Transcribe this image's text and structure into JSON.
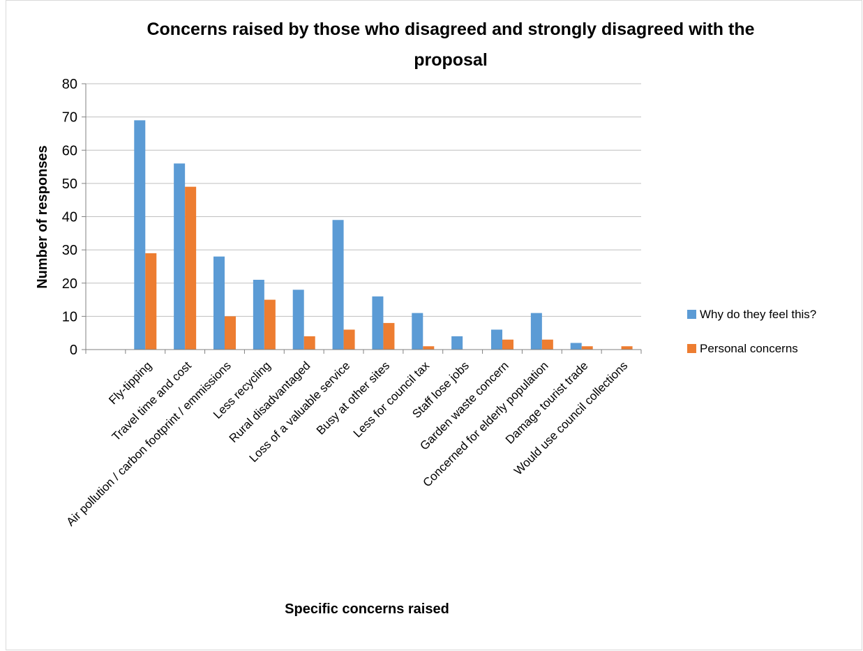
{
  "chart_data": {
    "type": "bar",
    "title_line1": "Concerns raised by those who disagreed and strongly disagreed with the",
    "title_line2": "proposal",
    "xlabel": "Specific concerns raised",
    "ylabel": "Number of responses",
    "ylim": [
      0,
      80
    ],
    "y_ticks": [
      "0",
      "10",
      "20",
      "30",
      "40",
      "50",
      "60",
      "70",
      "80"
    ],
    "grid": true,
    "legend_position": "right",
    "categories": [
      "",
      "Fly-tipping",
      "Travel time and cost",
      "Air pollution / carbon footprint / emmissions",
      "Less recycling",
      "Rural disadvantaged",
      "Loss of a valuable service",
      "Busy at other sites",
      "Less for council tax",
      "Staff lose jobs",
      "Garden waste concern",
      "Concerned for elderly population",
      "Damage tourist trade",
      "Would use council collections"
    ],
    "series": [
      {
        "name": "Why do they feel this?",
        "color": "#5b9bd5",
        "values": [
          0,
          69,
          56,
          28,
          21,
          18,
          39,
          16,
          11,
          4,
          6,
          11,
          2,
          0
        ]
      },
      {
        "name": "Personal concerns",
        "color": "#ed7d31",
        "values": [
          0,
          29,
          49,
          10,
          15,
          4,
          6,
          8,
          1,
          0,
          3,
          3,
          1,
          1
        ]
      }
    ]
  }
}
